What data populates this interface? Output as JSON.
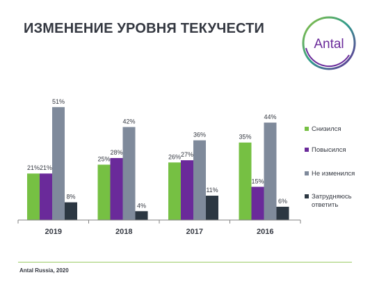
{
  "title": "ИЗМЕНЕНИЕ УРОВНЯ ТЕКУЧЕСТИ",
  "logo_text": "Antal",
  "source": "Antal Russia, 2020",
  "colors": {
    "series": [
      "#76c043",
      "#6a2a9a",
      "#7f8a9b",
      "#2c3742"
    ],
    "title": "#333740",
    "axis": "#808080"
  },
  "chart_data": {
    "type": "bar",
    "categories": [
      "2019",
      "2018",
      "2017",
      "2016"
    ],
    "series": [
      {
        "name": "Снизился",
        "values": [
          21,
          25,
          26,
          35
        ]
      },
      {
        "name": "Повысился",
        "values": [
          21,
          28,
          27,
          15
        ]
      },
      {
        "name": "Не изменился",
        "values": [
          51,
          42,
          36,
          44
        ]
      },
      {
        "name": "Затрудняюсь ответить",
        "values": [
          8,
          4,
          11,
          6
        ]
      }
    ],
    "value_suffix": "%",
    "ylim": [
      0,
      60
    ],
    "grid": false,
    "legend_position": "right"
  }
}
